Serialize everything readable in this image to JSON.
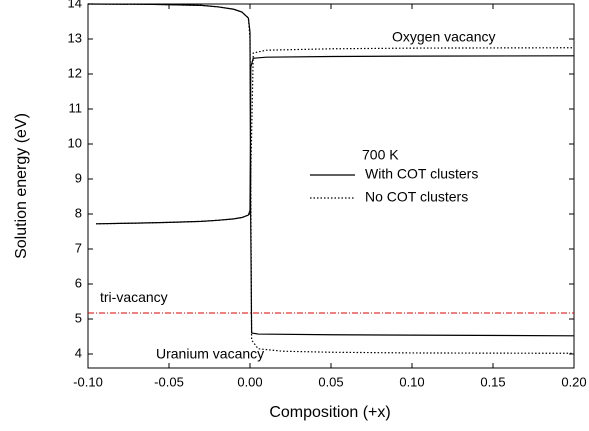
{
  "chart_data": {
    "type": "line",
    "x_label": "Composition (+x)",
    "y_label": "Solution energy (eV)",
    "xlim": [
      -0.1,
      0.2
    ],
    "ylim": [
      3.6,
      14
    ],
    "xticks": [
      {
        "value": -0.1,
        "label": "-0.10"
      },
      {
        "value": -0.05,
        "label": "-0.05"
      },
      {
        "value": 0,
        "label": "0.00"
      },
      {
        "value": 0.05,
        "label": "0.05"
      },
      {
        "value": 0.1,
        "label": "0.10"
      },
      {
        "value": 0.15,
        "label": "0.15"
      },
      {
        "value": 0.2,
        "label": "0.20"
      }
    ],
    "yticks": [
      4,
      5,
      6,
      7,
      8,
      9,
      10,
      11,
      12,
      13,
      14
    ],
    "legend_title": "700 K",
    "series": [
      {
        "name": "With COT clusters",
        "color": "#000000",
        "dash": "solid",
        "x": [
          -0.095,
          -0.07,
          -0.05,
          -0.03,
          -0.02,
          -0.01,
          -0.005,
          -0.001,
          0,
          0.0005,
          0.002,
          0.01,
          0.05,
          0.1,
          0.2,
          null,
          -0.1,
          -0.06,
          -0.03,
          -0.02,
          -0.01,
          -0.005,
          -0.001,
          0,
          0.0004,
          0.001,
          0.005,
          0.05,
          0.1,
          0.2
        ],
        "values": [
          7.72,
          7.74,
          7.76,
          7.79,
          7.82,
          7.86,
          7.9,
          7.97,
          8.1,
          12.2,
          12.45,
          12.48,
          12.5,
          12.51,
          12.52,
          null,
          14.0,
          13.99,
          13.96,
          13.92,
          13.85,
          13.77,
          13.6,
          13.2,
          8.0,
          4.6,
          4.57,
          4.55,
          4.54,
          4.52
        ]
      },
      {
        "name": "No COT clusters",
        "color": "#000000",
        "dash": "dotted",
        "x": [
          -0.095,
          -0.07,
          -0.05,
          -0.03,
          -0.02,
          -0.01,
          -0.005,
          -0.001,
          0,
          0.002,
          0.01,
          0.05,
          0.1,
          0.2,
          null,
          -0.1,
          -0.06,
          -0.03,
          -0.02,
          -0.01,
          -0.005,
          -0.001,
          0,
          0.001,
          0.005,
          0.02,
          0.05,
          0.1,
          0.2
        ],
        "values": [
          7.72,
          7.74,
          7.76,
          7.79,
          7.82,
          7.86,
          7.9,
          7.97,
          8.0,
          12.6,
          12.68,
          12.72,
          12.74,
          12.75,
          null,
          14.0,
          13.99,
          13.96,
          13.92,
          13.85,
          13.77,
          13.6,
          13.0,
          4.4,
          4.15,
          4.08,
          4.05,
          4.03,
          4.02
        ]
      }
    ],
    "hlines": [
      {
        "label": "tri-vacancy",
        "value": 5.17,
        "color": "#e00000"
      }
    ],
    "annotations": [
      "Oxygen vacancy",
      "Uranium vacancy"
    ]
  }
}
